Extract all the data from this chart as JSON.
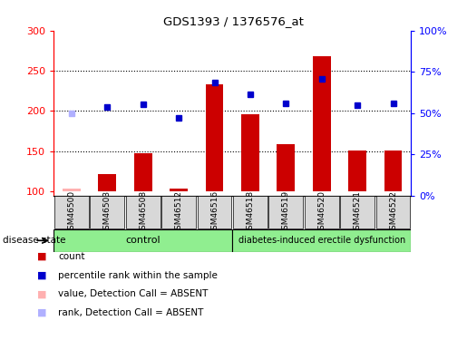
{
  "title": "GDS1393 / 1376576_at",
  "samples": [
    "GSM46500",
    "GSM46503",
    "GSM46508",
    "GSM46512",
    "GSM46516",
    "GSM46518",
    "GSM46519",
    "GSM46520",
    "GSM46521",
    "GSM46522"
  ],
  "bar_values": [
    104,
    122,
    148,
    104,
    233,
    196,
    159,
    268,
    151,
    151
  ],
  "bar_absent": [
    true,
    false,
    false,
    false,
    false,
    false,
    false,
    false,
    false,
    false
  ],
  "rank_values": [
    197,
    205,
    208,
    192,
    236,
    221,
    210,
    240,
    207,
    209
  ],
  "rank_absent": [
    true,
    false,
    false,
    false,
    false,
    false,
    false,
    false,
    false,
    false
  ],
  "bar_color": "#cc0000",
  "bar_absent_color": "#ffb0b0",
  "rank_color": "#0000cc",
  "rank_absent_color": "#b0b0ff",
  "ylim_left": [
    95,
    300
  ],
  "ylim_right": [
    0,
    100
  ],
  "yticks_left": [
    100,
    150,
    200,
    250,
    300
  ],
  "yticks_right": [
    0,
    25,
    50,
    75,
    100
  ],
  "ytick_labels_right": [
    "0%",
    "25%",
    "50%",
    "75%",
    "100%"
  ],
  "n_control": 5,
  "n_disease": 5,
  "control_label": "control",
  "disease_label": "diabetes-induced erectile dysfunction",
  "disease_state_label": "disease state",
  "legend_items": [
    {
      "label": "count",
      "color": "#cc0000"
    },
    {
      "label": "percentile rank within the sample",
      "color": "#0000cc"
    },
    {
      "label": "value, Detection Call = ABSENT",
      "color": "#ffb0b0"
    },
    {
      "label": "rank, Detection Call = ABSENT",
      "color": "#b0b0ff"
    }
  ],
  "bar_width": 0.5,
  "control_bg": "#90ee90",
  "disease_bg": "#90ee90",
  "sample_box_bg": "#d8d8d8"
}
